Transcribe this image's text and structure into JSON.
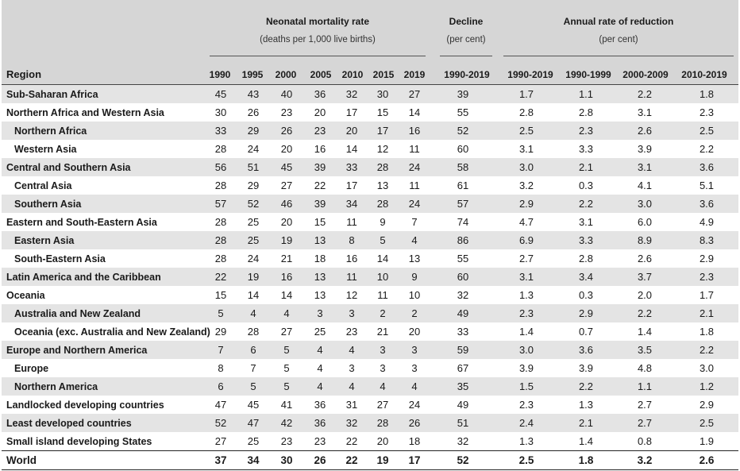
{
  "header": {
    "group_nmr_title": "Neonatal mortality rate",
    "group_nmr_sub": "(deaths per 1,000 live births)",
    "group_decline_title": "Decline",
    "group_decline_sub": "(per cent)",
    "group_arr_title": "Annual rate of reduction",
    "group_arr_sub": "(per cent)",
    "region_label": "Region",
    "columns": [
      "1990",
      "1995",
      "2000",
      "2005",
      "2010",
      "2015",
      "2019",
      "1990-2019",
      "1990-2019",
      "1990-1999",
      "2000-2009",
      "2010-2019"
    ]
  },
  "rows": [
    {
      "name": "Sub-Saharan Africa",
      "cells": [
        "45",
        "43",
        "40",
        "36",
        "32",
        "30",
        "27",
        "39",
        "1.7",
        "1.1",
        "2.2",
        "1.8"
      ]
    },
    {
      "name": "Northern Africa and Western Asia",
      "cells": [
        "30",
        "26",
        "23",
        "20",
        "17",
        "15",
        "14",
        "55",
        "2.8",
        "2.8",
        "3.1",
        "2.3"
      ]
    },
    {
      "name": "Northern Africa",
      "cells": [
        "33",
        "29",
        "26",
        "23",
        "20",
        "17",
        "16",
        "52",
        "2.5",
        "2.3",
        "2.6",
        "2.5"
      ]
    },
    {
      "name": "Western Asia",
      "cells": [
        "28",
        "24",
        "20",
        "16",
        "14",
        "12",
        "11",
        "60",
        "3.1",
        "3.3",
        "3.9",
        "2.2"
      ]
    },
    {
      "name": "Central and Southern Asia",
      "cells": [
        "56",
        "51",
        "45",
        "39",
        "33",
        "28",
        "24",
        "58",
        "3.0",
        "2.1",
        "3.1",
        "3.6"
      ]
    },
    {
      "name": "Central Asia",
      "cells": [
        "28",
        "29",
        "27",
        "22",
        "17",
        "13",
        "11",
        "61",
        "3.2",
        "0.3",
        "4.1",
        "5.1"
      ]
    },
    {
      "name": "Southern Asia",
      "cells": [
        "57",
        "52",
        "46",
        "39",
        "34",
        "28",
        "24",
        "57",
        "2.9",
        "2.2",
        "3.0",
        "3.6"
      ]
    },
    {
      "name": "Eastern and South-Eastern Asia",
      "cells": [
        "28",
        "25",
        "20",
        "15",
        "11",
        "9",
        "7",
        "74",
        "4.7",
        "3.1",
        "6.0",
        "4.9"
      ]
    },
    {
      "name": "Eastern Asia",
      "cells": [
        "28",
        "25",
        "19",
        "13",
        "8",
        "5",
        "4",
        "86",
        "6.9",
        "3.3",
        "8.9",
        "8.3"
      ]
    },
    {
      "name": "South-Eastern Asia",
      "cells": [
        "28",
        "24",
        "21",
        "18",
        "16",
        "14",
        "13",
        "55",
        "2.7",
        "2.8",
        "2.6",
        "2.9"
      ]
    },
    {
      "name": "Latin America and the Caribbean",
      "cells": [
        "22",
        "19",
        "16",
        "13",
        "11",
        "10",
        "9",
        "60",
        "3.1",
        "3.4",
        "3.7",
        "2.3"
      ]
    },
    {
      "name": "Oceania",
      "cells": [
        "15",
        "14",
        "14",
        "13",
        "12",
        "11",
        "10",
        "32",
        "1.3",
        "0.3",
        "2.0",
        "1.7"
      ]
    },
    {
      "name": "Australia and New Zealand",
      "cells": [
        "5",
        "4",
        "4",
        "3",
        "3",
        "2",
        "2",
        "49",
        "2.3",
        "2.9",
        "2.2",
        "2.1"
      ]
    },
    {
      "name": "Oceania (exc. Australia and New Zealand)",
      "cells": [
        "29",
        "28",
        "27",
        "25",
        "23",
        "21",
        "20",
        "33",
        "1.4",
        "0.7",
        "1.4",
        "1.8"
      ]
    },
    {
      "name": "Europe and Northern America",
      "cells": [
        "7",
        "6",
        "5",
        "4",
        "4",
        "3",
        "3",
        "59",
        "3.0",
        "3.6",
        "3.5",
        "2.2"
      ]
    },
    {
      "name": "Europe",
      "cells": [
        "8",
        "7",
        "5",
        "4",
        "3",
        "3",
        "3",
        "67",
        "3.9",
        "3.9",
        "4.8",
        "3.0"
      ]
    },
    {
      "name": "Northern America",
      "cells": [
        "6",
        "5",
        "5",
        "4",
        "4",
        "4",
        "4",
        "35",
        "1.5",
        "2.2",
        "1.1",
        "1.2"
      ]
    },
    {
      "name": "Landlocked developing countries",
      "cells": [
        "47",
        "45",
        "41",
        "36",
        "31",
        "27",
        "24",
        "49",
        "2.3",
        "1.3",
        "2.7",
        "2.9"
      ]
    },
    {
      "name": "Least developed countries",
      "cells": [
        "52",
        "47",
        "42",
        "36",
        "32",
        "28",
        "26",
        "51",
        "2.4",
        "2.1",
        "2.7",
        "2.5"
      ]
    },
    {
      "name": "Small island developing States",
      "cells": [
        "27",
        "25",
        "23",
        "23",
        "22",
        "20",
        "18",
        "32",
        "1.3",
        "1.4",
        "0.8",
        "1.9"
      ]
    },
    {
      "name": "World",
      "cells": [
        "37",
        "34",
        "30",
        "26",
        "22",
        "19",
        "17",
        "52",
        "2.5",
        "1.8",
        "3.2",
        "2.6"
      ]
    }
  ]
}
